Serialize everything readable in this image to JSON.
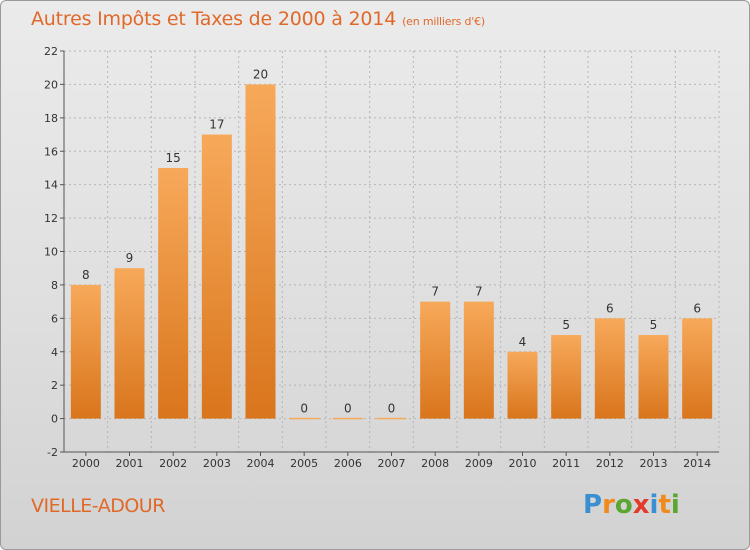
{
  "title": "Autres Impôts et Taxes de 2000 à 2014",
  "subtitle": "(en milliers d'€)",
  "commune": "VIELLE-ADOUR",
  "logo": {
    "text": "Proxiti",
    "letters": [
      {
        "ch": "P",
        "color": "#3a8fd0"
      },
      {
        "ch": "r",
        "color": "#f08a1c"
      },
      {
        "ch": "o",
        "color": "#5aa631"
      },
      {
        "ch": "x",
        "color": "#e23a2a"
      },
      {
        "ch": "i",
        "color": "#3a8fd0"
      },
      {
        "ch": "t",
        "color": "#f08a1c"
      },
      {
        "ch": "i",
        "color": "#5aa631"
      }
    ]
  },
  "colors": {
    "accent": "#e0692a",
    "bar_light": "#f7a95a",
    "bar_dark": "#d9751c",
    "grid": "#b5b5b5",
    "axis_text": "#333333"
  },
  "chart_data": {
    "type": "bar",
    "categories": [
      "2000",
      "2001",
      "2002",
      "2003",
      "2004",
      "2005",
      "2006",
      "2007",
      "2008",
      "2009",
      "2010",
      "2011",
      "2012",
      "2013",
      "2014"
    ],
    "values": [
      8,
      9,
      15,
      17,
      20,
      0,
      0,
      0,
      7,
      7,
      4,
      5,
      6,
      5,
      6
    ],
    "data_labels": [
      "8",
      "9",
      "15",
      "17",
      "20",
      "0",
      "0",
      "0",
      "7",
      "7",
      "4",
      "5",
      "6",
      "5",
      "6"
    ],
    "ylim": [
      -2,
      22
    ],
    "yticks": [
      -2,
      0,
      2,
      4,
      6,
      8,
      10,
      12,
      14,
      16,
      18,
      20,
      22
    ],
    "ytick_labels": [
      "-2",
      "0",
      "2",
      "4",
      "6",
      "8",
      "10",
      "12",
      "14",
      "16",
      "18",
      "20",
      "22"
    ],
    "grid": true,
    "xlabel": "",
    "ylabel": ""
  }
}
